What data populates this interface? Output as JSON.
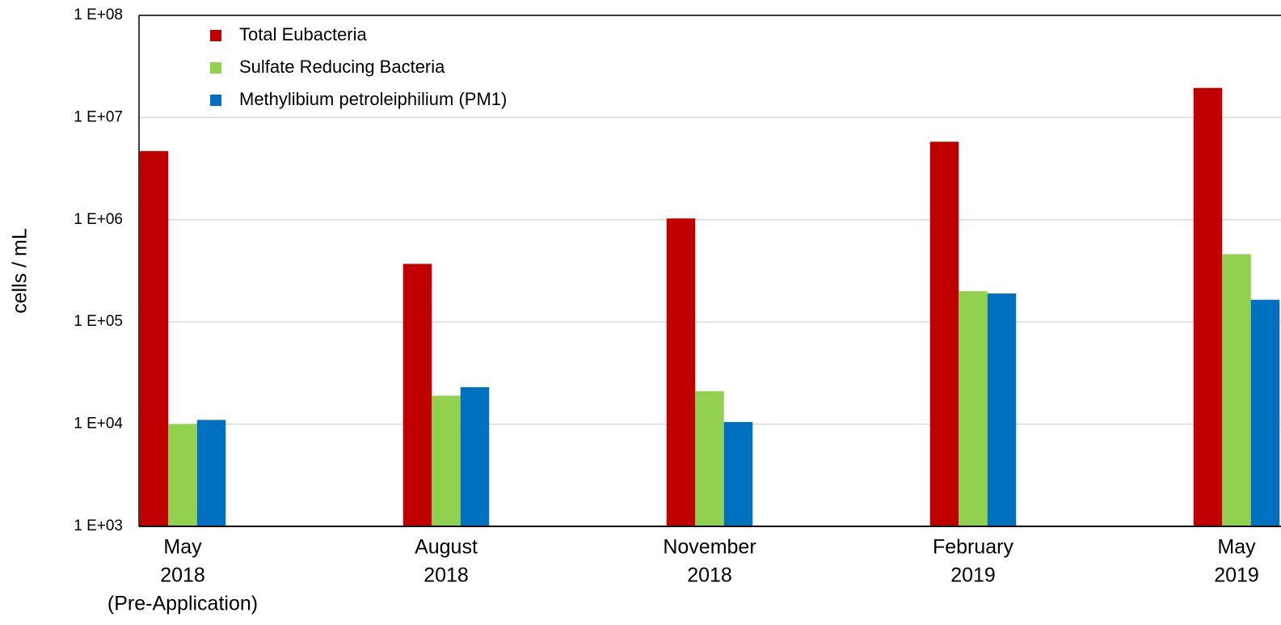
{
  "chart_data": {
    "type": "bar",
    "y_label": "cells / mL",
    "log_scale": true,
    "grid": true,
    "legend": "top-left",
    "categories": [
      [
        "May",
        "2018",
        "(Pre-Application)"
      ],
      [
        "August",
        "2018"
      ],
      [
        "November",
        "2018"
      ],
      [
        "February",
        "2019"
      ],
      [
        "May",
        "2019"
      ]
    ],
    "series": [
      {
        "name": "Total Eubacteria",
        "color": "#c00000",
        "values": [
          4700000,
          370000,
          1030000,
          5800000,
          19500000
        ]
      },
      {
        "name": "Sulfate Reducing Bacteria",
        "color": "#92d050",
        "values": [
          10000,
          19000,
          21000,
          200000,
          460000
        ]
      },
      {
        "name": "Methylibium petroleiphilium (PM1)",
        "color": "#0070c0",
        "values": [
          11000,
          23000,
          10500,
          190000,
          165000
        ]
      }
    ],
    "ylim": [
      1000,
      100000000
    ],
    "yticks": [
      {
        "value": 1000,
        "label": "1 E+03"
      },
      {
        "value": 10000,
        "label": "1 E+04"
      },
      {
        "value": 100000,
        "label": "1 E+05"
      },
      {
        "value": 1000000,
        "label": "1 E+06"
      },
      {
        "value": 10000000,
        "label": "1 E+07"
      },
      {
        "value": 100000000,
        "label": "1 E+08"
      }
    ]
  }
}
